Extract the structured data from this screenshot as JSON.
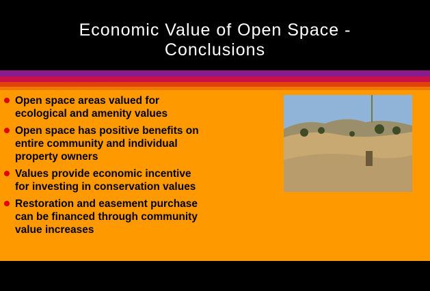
{
  "title_lines": [
    "Economic Value of Open Space -",
    "Conclusions"
  ],
  "bullets": [
    {
      "lines": [
        "Open space areas valued for",
        "ecological and amenity values"
      ]
    },
    {
      "lines": [
        "Open space has positive benefits on",
        "entire community and individual",
        "property owners"
      ]
    },
    {
      "lines": [
        "Values provide economic incentive",
        "for investing in conservation values"
      ]
    },
    {
      "lines": [
        "Restoration and easement purchase",
        "can be financed through community",
        "value increases"
      ]
    }
  ]
}
